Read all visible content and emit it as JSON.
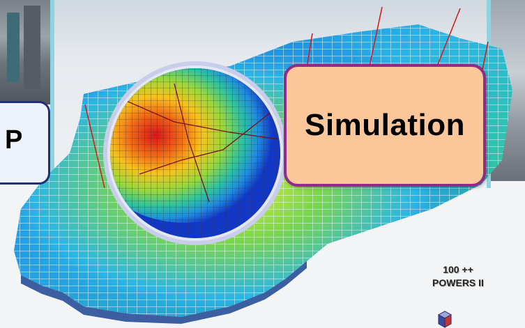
{
  "left_callout": {
    "text": "P"
  },
  "simulation_callout": {
    "text": "Simulation"
  },
  "software_label": {
    "line1": "100 ++",
    "line2": "POWERS II"
  },
  "colors": {
    "simulation_fill": "#fbc79a",
    "simulation_border": "#8e2c86",
    "left_callout_border": "#1f2f7a",
    "frame_accent": "#8ed3e0"
  },
  "icons": [
    "reservoir-grid-map",
    "well-trajectory-lines",
    "circular-grid-inset",
    "cube-icon"
  ]
}
